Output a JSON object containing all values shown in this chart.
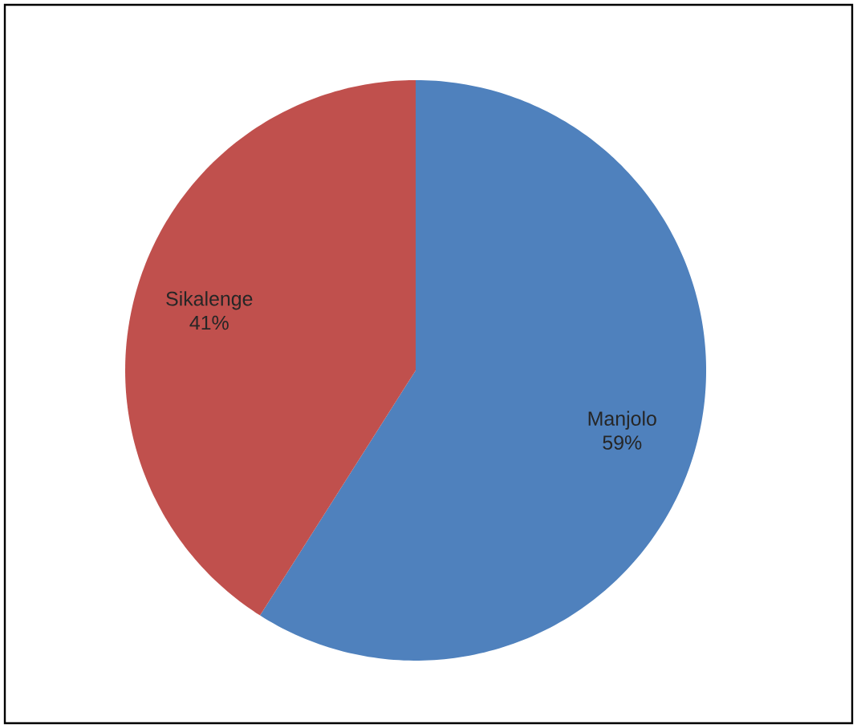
{
  "chart_data": {
    "type": "pie",
    "categories": [
      "Manjolo",
      "Sikalenge"
    ],
    "values": [
      59,
      41
    ],
    "colors": [
      "#4f81bd",
      "#c0504d"
    ],
    "value_labels": [
      "59%",
      "41%"
    ]
  }
}
